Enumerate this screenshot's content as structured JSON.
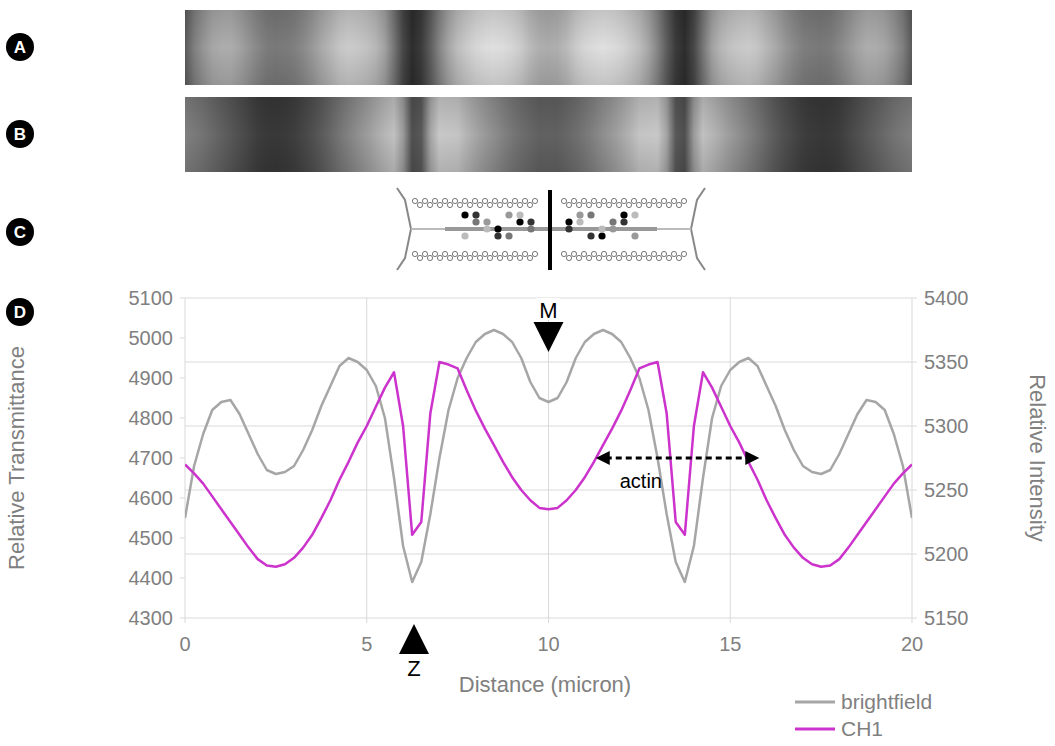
{
  "panels": {
    "labels": [
      "A",
      "B",
      "C",
      "D"
    ]
  },
  "chart_data": {
    "type": "line",
    "xlabel": "Distance (micron)",
    "ylabel": "Relative Transmittance",
    "y2label": "Relative Intensity",
    "x": [
      0,
      0.25,
      0.5,
      0.75,
      1,
      1.25,
      1.5,
      1.75,
      2,
      2.25,
      2.5,
      2.75,
      3,
      3.25,
      3.5,
      3.75,
      4,
      4.25,
      4.5,
      4.75,
      5,
      5.25,
      5.5,
      5.75,
      6,
      6.25,
      6.5,
      6.75,
      7,
      7.25,
      7.5,
      7.75,
      8,
      8.25,
      8.5,
      8.75,
      9,
      9.25,
      9.5,
      9.75,
      10,
      10.25,
      10.5,
      10.75,
      11,
      11.25,
      11.5,
      11.75,
      12,
      12.25,
      12.5,
      12.75,
      13,
      13.25,
      13.5,
      13.75,
      14,
      14.25,
      14.5,
      14.75,
      15,
      15.25,
      15.5,
      15.75,
      16,
      16.25,
      16.5,
      16.75,
      17,
      17.25,
      17.5,
      17.75,
      18,
      18.25,
      18.5,
      18.75,
      19,
      19.25,
      19.5,
      19.75,
      20
    ],
    "xlim": [
      0,
      20
    ],
    "xticks": [
      0,
      5,
      10,
      15,
      20
    ],
    "ylim": [
      4300,
      5100
    ],
    "yticks": [
      4300,
      4400,
      4500,
      4600,
      4700,
      4800,
      4900,
      5000,
      5100
    ],
    "y2lim": [
      5150,
      5400
    ],
    "y2ticks": [
      5150,
      5200,
      5250,
      5300,
      5350,
      5400
    ],
    "grid": true,
    "legend": "bottom-right",
    "series": [
      {
        "name": "brightfield",
        "color": "#a6a6a6",
        "values": [
          4550,
          4680,
          4760,
          4820,
          4840,
          4845,
          4810,
          4760,
          4710,
          4670,
          4660,
          4665,
          4680,
          4720,
          4770,
          4830,
          4880,
          4930,
          4950,
          4940,
          4920,
          4880,
          4800,
          4650,
          4480,
          4390,
          4440,
          4560,
          4700,
          4820,
          4900,
          4950,
          4990,
          5010,
          5020,
          5010,
          4990,
          4950,
          4890,
          4850,
          4840,
          4850,
          4890,
          4950,
          4990,
          5010,
          5020,
          5010,
          4990,
          4950,
          4900,
          4820,
          4700,
          4560,
          4440,
          4390,
          4480,
          4650,
          4800,
          4880,
          4920,
          4940,
          4950,
          4930,
          4880,
          4830,
          4770,
          4720,
          4680,
          4665,
          4660,
          4670,
          4710,
          4760,
          4810,
          4845,
          4840,
          4820,
          4760,
          4680,
          4550
        ]
      },
      {
        "name": "CH1",
        "color": "#cc33cc",
        "axis": "y2",
        "values": [
          5270,
          5263,
          5255,
          5245,
          5235,
          5225,
          5215,
          5205,
          5196,
          5191,
          5190,
          5192,
          5197,
          5205,
          5215,
          5228,
          5242,
          5258,
          5272,
          5287,
          5300,
          5315,
          5330,
          5342,
          5300,
          5215,
          5225,
          5310,
          5350,
          5348,
          5345,
          5328,
          5312,
          5298,
          5285,
          5272,
          5260,
          5250,
          5242,
          5236,
          5235,
          5236,
          5242,
          5250,
          5260,
          5272,
          5285,
          5298,
          5312,
          5328,
          5345,
          5348,
          5350,
          5310,
          5225,
          5215,
          5300,
          5342,
          5330,
          5315,
          5300,
          5287,
          5272,
          5258,
          5242,
          5228,
          5215,
          5205,
          5197,
          5192,
          5190,
          5191,
          5196,
          5205,
          5215,
          5225,
          5235,
          5245,
          5255,
          5263,
          5270
        ]
      }
    ],
    "annotations": [
      {
        "text": "M",
        "x": 10
      },
      {
        "text": "Z",
        "x": 6.3
      },
      {
        "text": "actin",
        "x": 11.3,
        "x2": 15.8,
        "y": 4700
      }
    ]
  }
}
